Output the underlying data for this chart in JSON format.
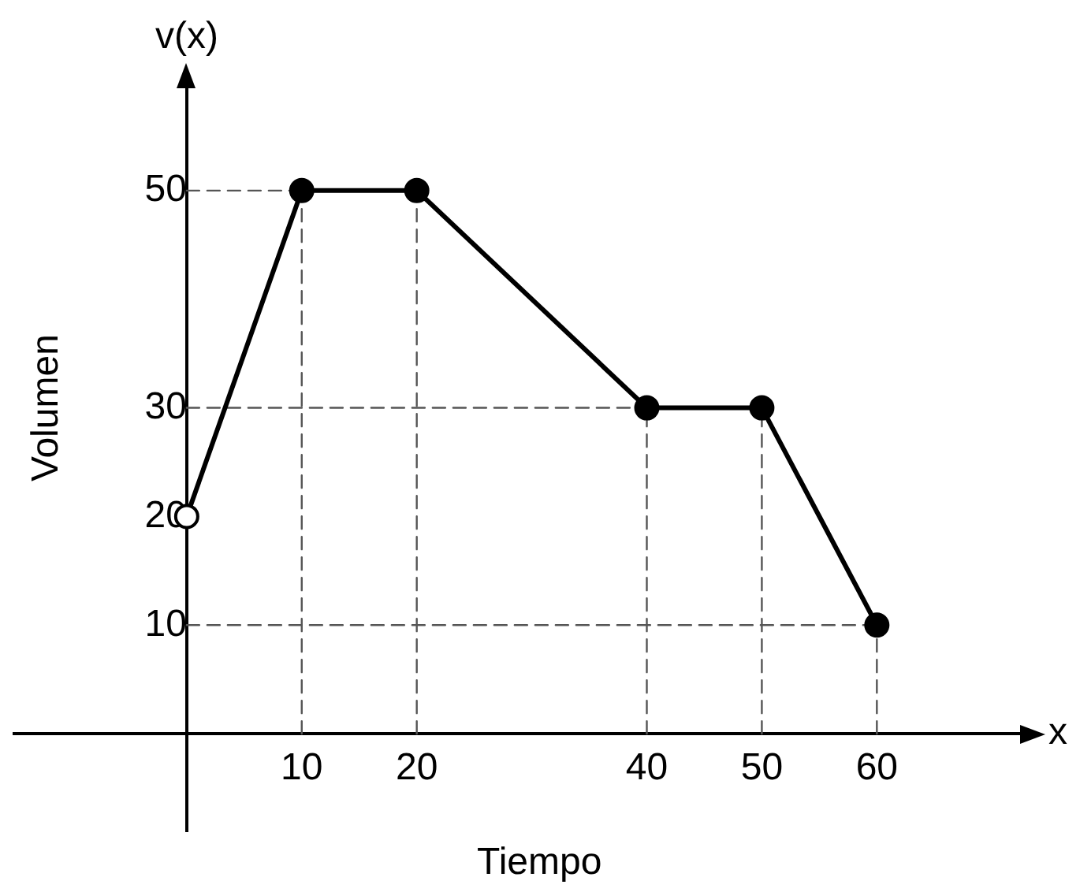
{
  "chart_data": {
    "type": "line",
    "xlabel": "Tiempo",
    "ylabel": "Volumen",
    "annotations": [
      "v(x)",
      "x"
    ],
    "xlim": [
      -15,
      73
    ],
    "ylim": [
      -9,
      60
    ],
    "xticks": [
      10,
      20,
      40,
      50,
      60
    ],
    "yticks": [
      10,
      20,
      30,
      50
    ],
    "legend": false,
    "series": [
      {
        "x": [
          10,
          10
        ],
        "values": [
          0,
          50
        ],
        "color": "#555555",
        "line_style": "dashed",
        "marker": "none"
      },
      {
        "x": [
          20,
          20
        ],
        "values": [
          0,
          50
        ],
        "color": "#555555",
        "line_style": "dashed",
        "marker": "none"
      },
      {
        "x": [
          40,
          40
        ],
        "values": [
          0,
          30
        ],
        "color": "#555555",
        "line_style": "dashed",
        "marker": "none"
      },
      {
        "x": [
          50,
          50
        ],
        "values": [
          0,
          30
        ],
        "color": "#555555",
        "line_style": "dashed",
        "marker": "none"
      },
      {
        "x": [
          60,
          60
        ],
        "values": [
          0,
          10
        ],
        "color": "#555555",
        "line_style": "dashed",
        "marker": "none"
      },
      {
        "x": [
          0,
          10
        ],
        "values": [
          50,
          50
        ],
        "color": "#555555",
        "line_style": "dashed",
        "marker": "none"
      },
      {
        "x": [
          0,
          40
        ],
        "values": [
          30,
          30
        ],
        "color": "#555555",
        "line_style": "dashed",
        "marker": "none"
      },
      {
        "x": [
          0,
          60
        ],
        "values": [
          10,
          10
        ],
        "color": "#555555",
        "line_style": "dashed",
        "marker": "none"
      },
      {
        "x": [
          0,
          10,
          20,
          40,
          50,
          60
        ],
        "values": [
          20,
          50,
          50,
          30,
          30,
          10
        ],
        "color": "#000000",
        "line_style": "solid",
        "marker": "none"
      },
      {
        "type": "scatter",
        "x": [
          10,
          20,
          40,
          50,
          60
        ],
        "values": [
          50,
          50,
          30,
          30,
          10
        ],
        "color": "#000000",
        "marker": "circle"
      },
      {
        "type": "scatter",
        "x": [
          0
        ],
        "values": [
          20
        ],
        "color": "#ffffff",
        "marker": "circle"
      }
    ]
  }
}
